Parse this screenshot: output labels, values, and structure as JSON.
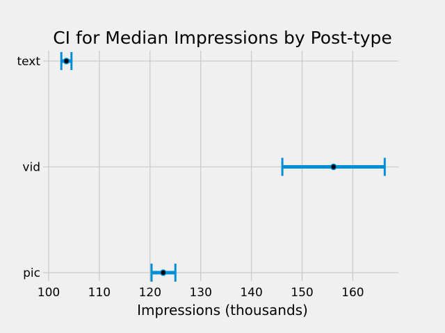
{
  "chart_data": {
    "type": "errorbar",
    "title": "CI for Median Impressions by Post-type",
    "xlabel": "Impressions (thousands)",
    "ylabel": "",
    "xlim": [
      100,
      169
    ],
    "xticks": [
      "100",
      "110",
      "120",
      "130",
      "140",
      "150",
      "160"
    ],
    "categories": [
      "text",
      "vid",
      "pic"
    ],
    "median": [
      103.5,
      156.2,
      122.6
    ],
    "ci_lower": [
      102.5,
      146.1,
      120.3
    ],
    "ci_upper": [
      104.5,
      166.3,
      125.0
    ],
    "grid": true,
    "colors": {
      "bar": "#008fd5",
      "point": "#000000",
      "grid": "#cbcbcb",
      "background": "#f0f0f0"
    }
  }
}
